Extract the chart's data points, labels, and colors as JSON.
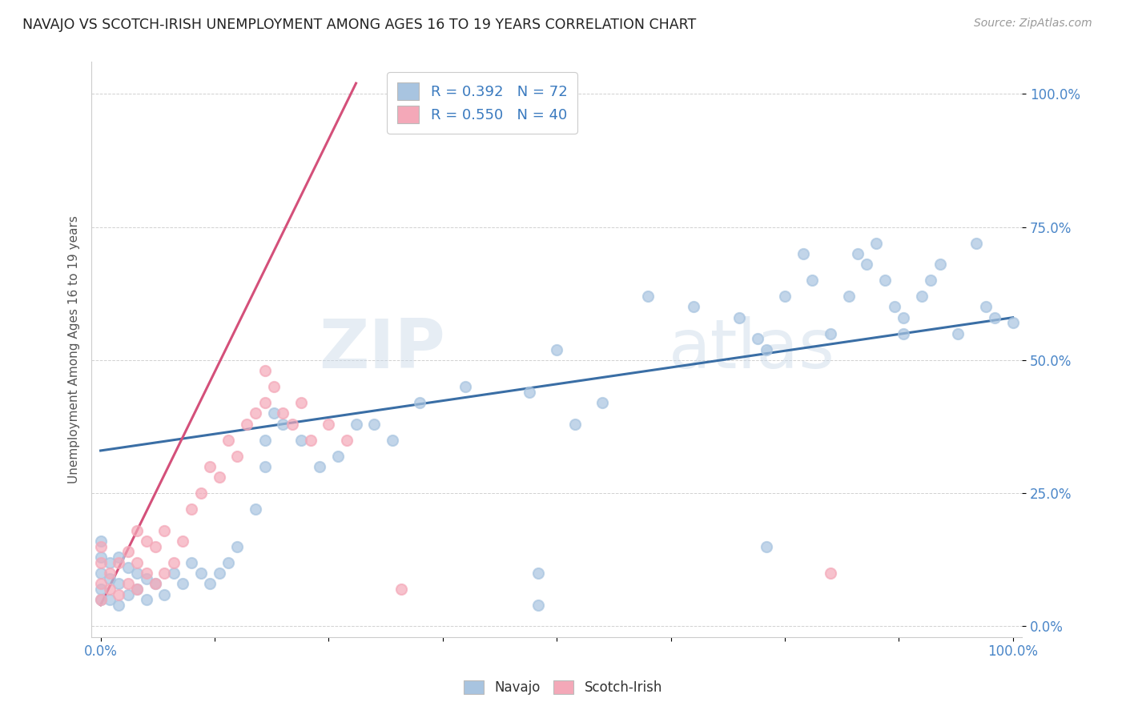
{
  "title": "NAVAJO VS SCOTCH-IRISH UNEMPLOYMENT AMONG AGES 16 TO 19 YEARS CORRELATION CHART",
  "source": "Source: ZipAtlas.com",
  "ylabel": "Unemployment Among Ages 16 to 19 years",
  "ytick_labels": [
    "0.0%",
    "25.0%",
    "50.0%",
    "75.0%",
    "100.0%"
  ],
  "ytick_values": [
    0.0,
    0.25,
    0.5,
    0.75,
    1.0
  ],
  "xlim": [
    -0.01,
    1.01
  ],
  "ylim": [
    -0.02,
    1.06
  ],
  "navajo_R": 0.392,
  "navajo_N": 72,
  "scotch_R": 0.55,
  "scotch_N": 40,
  "navajo_color": "#a8c4e0",
  "scotch_color": "#f4a8b8",
  "navajo_line_color": "#3a6ea5",
  "scotch_line_color": "#d4507a",
  "legend_text_color": "#3a7abf",
  "navajo_x": [
    0.0,
    0.0,
    0.0,
    0.0,
    0.0,
    0.01,
    0.01,
    0.01,
    0.02,
    0.02,
    0.02,
    0.03,
    0.03,
    0.04,
    0.04,
    0.05,
    0.05,
    0.06,
    0.07,
    0.08,
    0.09,
    0.1,
    0.11,
    0.12,
    0.13,
    0.14,
    0.15,
    0.17,
    0.18,
    0.18,
    0.19,
    0.2,
    0.22,
    0.24,
    0.26,
    0.28,
    0.3,
    0.32,
    0.35,
    0.4,
    0.47,
    0.48,
    0.5,
    0.52,
    0.55,
    0.6,
    0.65,
    0.7,
    0.72,
    0.73,
    0.75,
    0.77,
    0.78,
    0.8,
    0.82,
    0.83,
    0.84,
    0.85,
    0.86,
    0.87,
    0.88,
    0.88,
    0.9,
    0.91,
    0.92,
    0.94,
    0.96,
    0.97,
    0.98,
    1.0,
    0.73,
    0.48
  ],
  "navajo_y": [
    0.05,
    0.07,
    0.1,
    0.13,
    0.16,
    0.05,
    0.09,
    0.12,
    0.04,
    0.08,
    0.13,
    0.06,
    0.11,
    0.07,
    0.1,
    0.05,
    0.09,
    0.08,
    0.06,
    0.1,
    0.08,
    0.12,
    0.1,
    0.08,
    0.1,
    0.12,
    0.15,
    0.22,
    0.3,
    0.35,
    0.4,
    0.38,
    0.35,
    0.3,
    0.32,
    0.38,
    0.38,
    0.35,
    0.42,
    0.45,
    0.44,
    0.04,
    0.52,
    0.38,
    0.42,
    0.62,
    0.6,
    0.58,
    0.54,
    0.52,
    0.62,
    0.7,
    0.65,
    0.55,
    0.62,
    0.7,
    0.68,
    0.72,
    0.65,
    0.6,
    0.55,
    0.58,
    0.62,
    0.65,
    0.68,
    0.55,
    0.72,
    0.6,
    0.58,
    0.57,
    0.15,
    0.1
  ],
  "scotch_x": [
    0.0,
    0.0,
    0.0,
    0.0,
    0.01,
    0.01,
    0.02,
    0.02,
    0.03,
    0.03,
    0.04,
    0.04,
    0.04,
    0.05,
    0.05,
    0.06,
    0.06,
    0.07,
    0.07,
    0.08,
    0.09,
    0.1,
    0.11,
    0.12,
    0.13,
    0.14,
    0.15,
    0.16,
    0.17,
    0.18,
    0.18,
    0.19,
    0.2,
    0.21,
    0.22,
    0.23,
    0.25,
    0.27,
    0.33,
    0.8
  ],
  "scotch_y": [
    0.05,
    0.08,
    0.12,
    0.15,
    0.07,
    0.1,
    0.06,
    0.12,
    0.08,
    0.14,
    0.07,
    0.12,
    0.18,
    0.1,
    0.16,
    0.08,
    0.15,
    0.1,
    0.18,
    0.12,
    0.16,
    0.22,
    0.25,
    0.3,
    0.28,
    0.35,
    0.32,
    0.38,
    0.4,
    0.42,
    0.48,
    0.45,
    0.4,
    0.38,
    0.42,
    0.35,
    0.38,
    0.35,
    0.07,
    0.1
  ],
  "navajo_line_x0": 0.0,
  "navajo_line_y0": 0.33,
  "navajo_line_x1": 1.0,
  "navajo_line_y1": 0.58,
  "scotch_line_x0": 0.0,
  "scotch_line_y0": 0.04,
  "scotch_line_x1": 0.28,
  "scotch_line_y1": 1.02
}
